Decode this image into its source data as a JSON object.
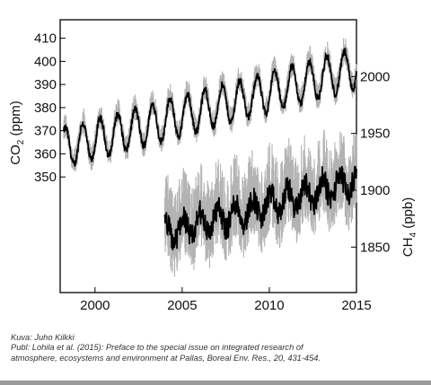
{
  "chart_data": {
    "type": "line",
    "x_axis": {
      "ticks": [
        2000,
        2005,
        2010,
        2015
      ],
      "range": [
        1998.0,
        2015.0
      ]
    },
    "y_axis_left": {
      "label": "CO₂ (ppm)",
      "label_main": "CO",
      "label_sub": "2",
      "label_rest": " (ppm)",
      "ticks": [
        350,
        360,
        370,
        380,
        390,
        400,
        410
      ],
      "range": [
        300,
        418
      ]
    },
    "y_axis_right": {
      "label": "CH₄ (ppb)",
      "label_main": "CH",
      "label_sub": "4",
      "label_rest": " (ppb)",
      "ticks": [
        1850,
        1900,
        1950,
        2000
      ],
      "range": [
        1810,
        2050
      ]
    },
    "grid": false,
    "colors": {
      "raw": "#b3b3b3",
      "smoothed": "#000000"
    },
    "series": [
      {
        "axis": "left",
        "x_range": [
          1998.2,
          2015.0
        ],
        "trend_at_start": 362.5,
        "trend_per_year": 2.05,
        "seasonal_amplitude": 8.5,
        "raw_spread": 7
      },
      {
        "axis": "right",
        "x_range": [
          2004.0,
          2015.0
        ],
        "trend_at_start": 1862,
        "trend_per_year": 4.2,
        "seasonal_amplitude": 10,
        "raw_spread": 45
      }
    ]
  },
  "caption": {
    "line1": "Kuva: Juho Kilkki",
    "line2": "Publ: Lohila et al. (2015): Preface to the special issue on integrated research of",
    "line3": "atmosphere, ecosystems and environment at Pallas, Boreal Env. Res., 20, 431-454."
  }
}
